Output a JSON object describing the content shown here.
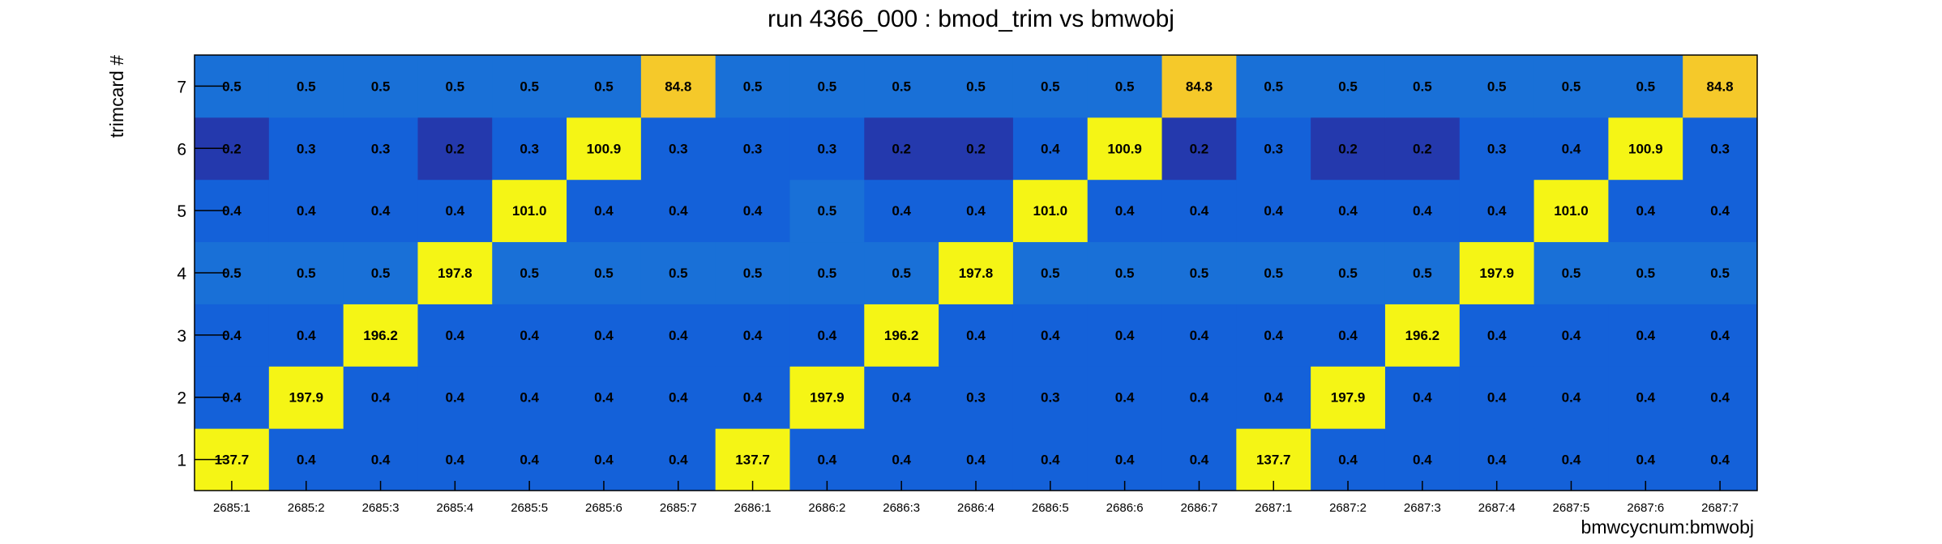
{
  "chart_data": {
    "type": "heatmap",
    "title": "run 4366_000 : bmod_trim vs bmwobj",
    "xlabel": "bmwcycnum:bmwobj",
    "ylabel": "trimcard #",
    "x_categories": [
      "2685:1",
      "2685:2",
      "2685:3",
      "2685:4",
      "2685:5",
      "2685:6",
      "2685:7",
      "2686:1",
      "2686:2",
      "2686:3",
      "2686:4",
      "2686:5",
      "2686:6",
      "2686:7",
      "2687:1",
      "2687:2",
      "2687:3",
      "2687:4",
      "2687:5",
      "2687:6",
      "2687:7"
    ],
    "y_categories": [
      "1",
      "2",
      "3",
      "4",
      "5",
      "6",
      "7"
    ],
    "values": [
      [
        "137.7",
        "0.4",
        "0.4",
        "0.4",
        "0.4",
        "0.4",
        "0.4",
        "137.7",
        "0.4",
        "0.4",
        "0.4",
        "0.4",
        "0.4",
        "0.4",
        "137.7",
        "0.4",
        "0.4",
        "0.4",
        "0.4",
        "0.4",
        "0.4"
      ],
      [
        "0.4",
        "197.9",
        "0.4",
        "0.4",
        "0.4",
        "0.4",
        "0.4",
        "0.4",
        "197.9",
        "0.4",
        "0.3",
        "0.3",
        "0.4",
        "0.4",
        "0.4",
        "197.9",
        "0.4",
        "0.4",
        "0.4",
        "0.4",
        "0.4"
      ],
      [
        "0.4",
        "0.4",
        "196.2",
        "0.4",
        "0.4",
        "0.4",
        "0.4",
        "0.4",
        "0.4",
        "196.2",
        "0.4",
        "0.4",
        "0.4",
        "0.4",
        "0.4",
        "0.4",
        "196.2",
        "0.4",
        "0.4",
        "0.4",
        "0.4"
      ],
      [
        "0.5",
        "0.5",
        "0.5",
        "197.8",
        "0.5",
        "0.5",
        "0.5",
        "0.5",
        "0.5",
        "0.5",
        "197.8",
        "0.5",
        "0.5",
        "0.5",
        "0.5",
        "0.5",
        "0.5",
        "197.9",
        "0.5",
        "0.5",
        "0.5"
      ],
      [
        "0.4",
        "0.4",
        "0.4",
        "0.4",
        "101.0",
        "0.4",
        "0.4",
        "0.4",
        "0.5",
        "0.4",
        "0.4",
        "101.0",
        "0.4",
        "0.4",
        "0.4",
        "0.4",
        "0.4",
        "0.4",
        "101.0",
        "0.4",
        "0.4"
      ],
      [
        "0.2",
        "0.3",
        "0.3",
        "0.2",
        "0.3",
        "100.9",
        "0.3",
        "0.3",
        "0.3",
        "0.2",
        "0.2",
        "0.4",
        "100.9",
        "0.2",
        "0.3",
        "0.2",
        "0.2",
        "0.3",
        "0.4",
        "100.9",
        "0.3"
      ],
      [
        "0.5",
        "0.5",
        "0.5",
        "0.5",
        "0.5",
        "0.5",
        "84.8",
        "0.5",
        "0.5",
        "0.5",
        "0.5",
        "0.5",
        "0.5",
        "84.8",
        "0.5",
        "0.5",
        "0.5",
        "0.5",
        "0.5",
        "0.5",
        "84.8"
      ]
    ],
    "colors": {
      "high": "#f5f515",
      "mid": "#f5c92a",
      "base": "#1461d9",
      "light": "#1970d7",
      "dark": "#2439ad",
      "darker": "#2436a8"
    },
    "grid": false
  }
}
